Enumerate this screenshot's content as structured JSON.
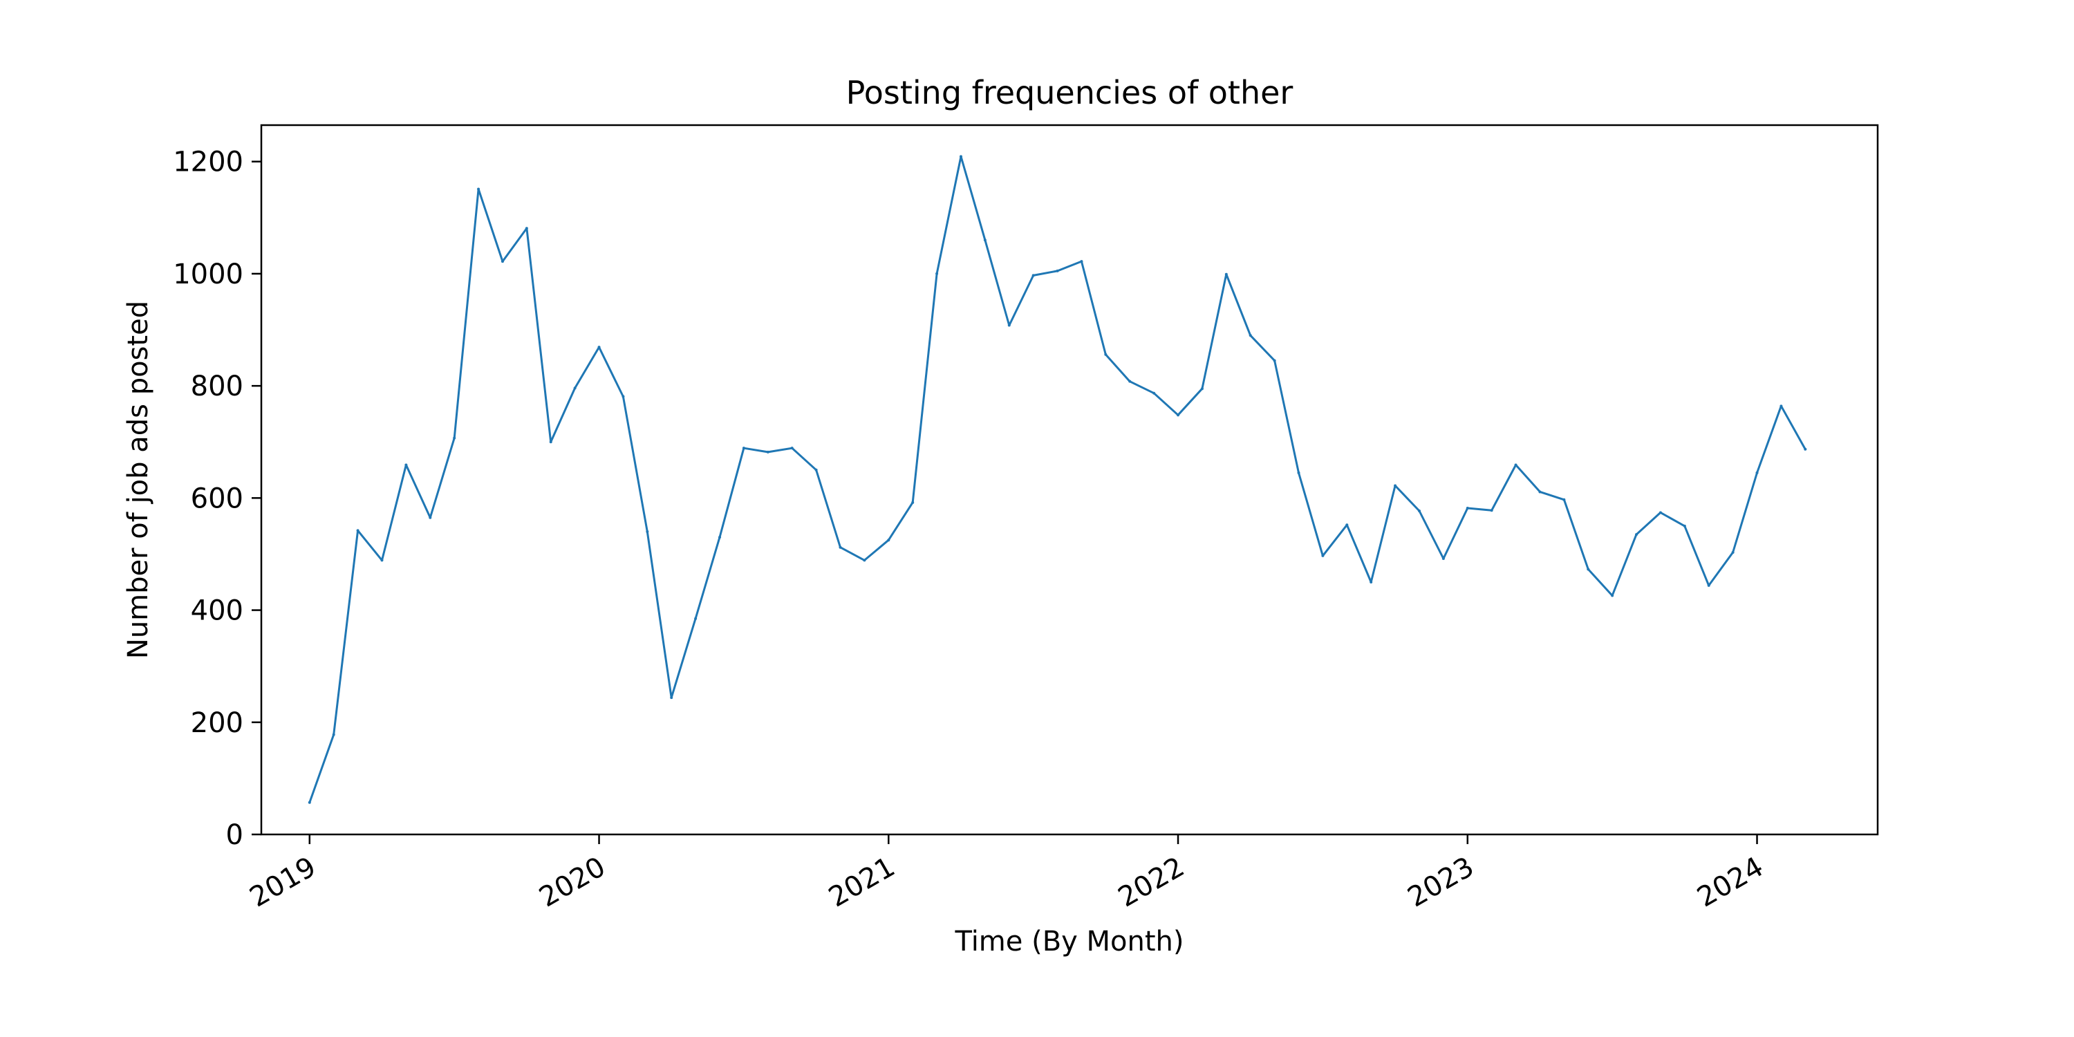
{
  "chart_data": {
    "type": "line",
    "title": "Posting frequencies of other",
    "xlabel": "Time (By Month)",
    "ylabel": "Number of job ads posted",
    "x_tick_labels": [
      "2019",
      "2020",
      "2021",
      "2022",
      "2023",
      "2024"
    ],
    "y_ticks": [
      0,
      200,
      400,
      600,
      800,
      1000,
      1200
    ],
    "ylim": [
      0,
      1265
    ],
    "xlim": [
      "2018-11",
      "2024-06"
    ],
    "grid": false,
    "legend": "none",
    "series": [
      {
        "color": "#1f77b4",
        "x": [
          "2019-01",
          "2019-02",
          "2019-03",
          "2019-04",
          "2019-05",
          "2019-06",
          "2019-07",
          "2019-08",
          "2019-09",
          "2019-10",
          "2019-11",
          "2019-12",
          "2020-01",
          "2020-02",
          "2020-03",
          "2020-04",
          "2020-05",
          "2020-06",
          "2020-07",
          "2020-08",
          "2020-09",
          "2020-10",
          "2020-11",
          "2020-12",
          "2021-01",
          "2021-02",
          "2021-03",
          "2021-04",
          "2021-05",
          "2021-06",
          "2021-07",
          "2021-08",
          "2021-09",
          "2021-10",
          "2021-11",
          "2021-12",
          "2022-01",
          "2022-02",
          "2022-03",
          "2022-04",
          "2022-05",
          "2022-06",
          "2022-07",
          "2022-08",
          "2022-09",
          "2022-10",
          "2022-11",
          "2022-12",
          "2023-01",
          "2023-02",
          "2023-03",
          "2023-04",
          "2023-05",
          "2023-06",
          "2023-07",
          "2023-08",
          "2023-09",
          "2023-10",
          "2023-11",
          "2023-12",
          "2024-01",
          "2024-02",
          "2024-03"
        ],
        "values": [
          57,
          178,
          542,
          489,
          659,
          565,
          707,
          1151,
          1022,
          1081,
          700,
          796,
          869,
          781,
          540,
          244,
          385,
          530,
          689,
          682,
          689,
          650,
          512,
          489,
          525,
          592,
          1000,
          1209,
          1060,
          908,
          997,
          1005,
          1022,
          856,
          808,
          787,
          748,
          795,
          999,
          890,
          845,
          645,
          497,
          552,
          450,
          622,
          577,
          492,
          582,
          578,
          659,
          611,
          597,
          473,
          426,
          535,
          574,
          550,
          444,
          503,
          645,
          764,
          687
        ]
      }
    ]
  }
}
